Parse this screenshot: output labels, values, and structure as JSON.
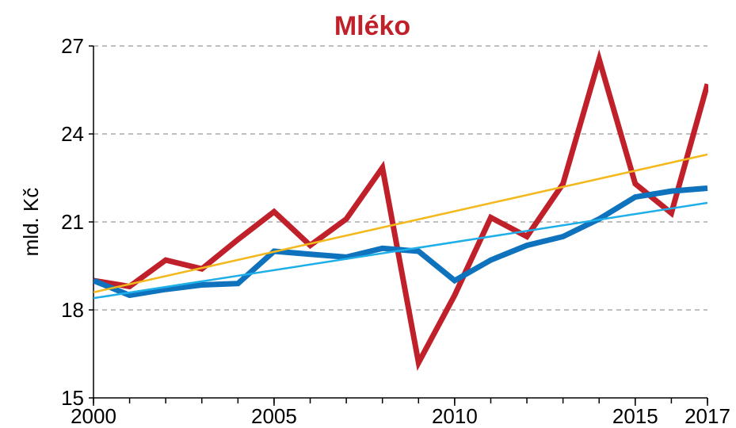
{
  "chart_data": {
    "type": "line",
    "title": "Mléko",
    "ylabel": "mld. Kč",
    "x": [
      2000,
      2001,
      2002,
      2003,
      2004,
      2005,
      2006,
      2007,
      2008,
      2009,
      2010,
      2011,
      2012,
      2013,
      2014,
      2015,
      2016,
      2017
    ],
    "series": [
      {
        "color": "#c0202a",
        "width": 7,
        "values": [
          19.0,
          18.8,
          19.7,
          19.4,
          20.4,
          21.35,
          20.2,
          21.1,
          22.85,
          16.2,
          18.5,
          21.15,
          20.5,
          22.3,
          26.55,
          22.3,
          21.3,
          25.7
        ]
      },
      {
        "color": "#0e72bd",
        "width": 7,
        "values": [
          19.0,
          18.5,
          18.7,
          18.85,
          18.9,
          20.0,
          19.9,
          19.8,
          20.1,
          20.0,
          19.0,
          19.7,
          20.2,
          20.5,
          21.1,
          21.85,
          22.05,
          22.15
        ]
      },
      {
        "color": "#f2b81c",
        "width": 2.5,
        "x": [
          2000,
          2017
        ],
        "values": [
          18.6,
          23.3
        ]
      },
      {
        "color": "#1eaee8",
        "width": 2.5,
        "x": [
          2000,
          2017
        ],
        "values": [
          18.4,
          21.65
        ]
      }
    ],
    "xlim": [
      2000,
      2017
    ],
    "xticks": [
      2000,
      2005,
      2010,
      2015,
      2017
    ],
    "xminor_ticks": [
      2000,
      2001,
      2002,
      2003,
      2004,
      2005,
      2006,
      2007,
      2008,
      2009,
      2010,
      2011,
      2012,
      2013,
      2014,
      2015,
      2016,
      2017
    ],
    "ylim": [
      15,
      27
    ],
    "yticks": [
      15,
      18,
      21,
      24,
      27
    ],
    "grid": true
  }
}
